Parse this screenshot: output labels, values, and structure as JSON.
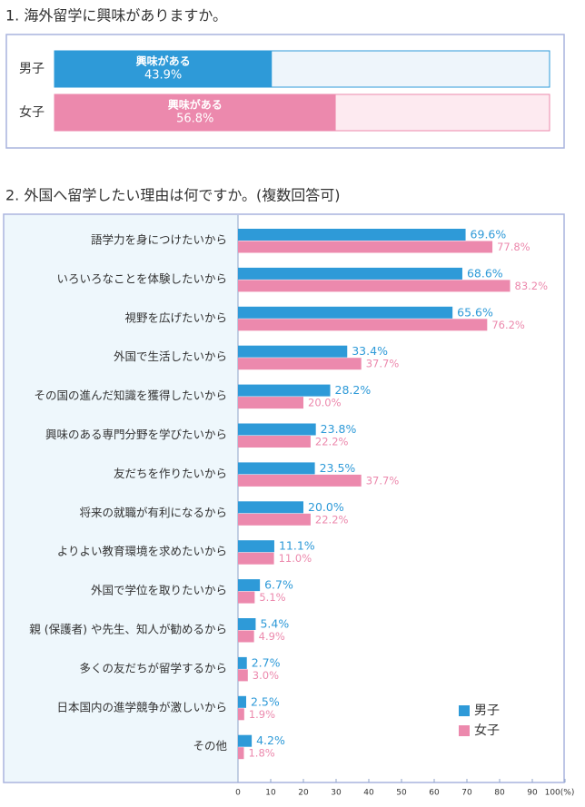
{
  "chart_data": [
    {
      "type": "bar",
      "title": "1. 海外留学に興味がありますか。",
      "categories": [
        "男子",
        "女子"
      ],
      "series": [
        {
          "name": "興味がある",
          "values": [
            43.9,
            56.8
          ],
          "value_labels": [
            "43.9%",
            "56.8%"
          ]
        }
      ],
      "colors": [
        "#2e9ad8",
        "#ec89ad"
      ],
      "track_colors": [
        "#eef5fb",
        "#fdeaf0"
      ],
      "xlim": [
        0,
        100
      ]
    },
    {
      "type": "bar",
      "title": "2. 外国へ留学したい理由は何ですか。(複数回答可)",
      "categories": [
        "語学力を身につけたいから",
        "いろいろなことを体験したいから",
        "視野を広げたいから",
        "外国で生活したいから",
        "その国の進んだ知識を獲得したいから",
        "興味のある専門分野を学びたいから",
        "友だちを作りたいから",
        "将来の就職が有利になるから",
        "よりよい教育環境を求めたいから",
        "外国で学位を取りたいから",
        "親 (保護者) や先生、知人が勧めるから",
        "多くの友だちが留学するから",
        "日本国内の進学競争が激しいから",
        "その他"
      ],
      "series": [
        {
          "name": "男子",
          "color": "#2e9ad8",
          "values": [
            69.6,
            68.6,
            65.6,
            33.4,
            28.2,
            23.8,
            23.5,
            20.0,
            11.1,
            6.7,
            5.4,
            2.7,
            2.5,
            4.2
          ],
          "value_labels": [
            "69.6%",
            "68.6%",
            "65.6%",
            "33.4%",
            "28.2%",
            "23.8%",
            "23.5%",
            "20.0%",
            "11.1%",
            "6.7%",
            "5.4%",
            "2.7%",
            "2.5%",
            "4.2%"
          ]
        },
        {
          "name": "女子",
          "color": "#ec89ad",
          "values": [
            77.8,
            83.2,
            76.2,
            37.7,
            20.0,
            22.2,
            37.7,
            22.2,
            11.0,
            5.1,
            4.9,
            3.0,
            1.9,
            1.8
          ],
          "value_labels": [
            "77.8%",
            "83.2%",
            "76.2%",
            "37.7%",
            "20.0%",
            "22.2%",
            "37.7%",
            "22.2%",
            "11.0%",
            "5.1%",
            "4.9%",
            "3.0%",
            "1.9%",
            "1.8%"
          ]
        }
      ],
      "xlim": [
        0,
        100
      ],
      "xticks": [
        0,
        10,
        20,
        30,
        40,
        50,
        60,
        70,
        80,
        90,
        {
          "value": 100,
          "label": "100(%)"
        }
      ],
      "legend": "lower right"
    }
  ]
}
